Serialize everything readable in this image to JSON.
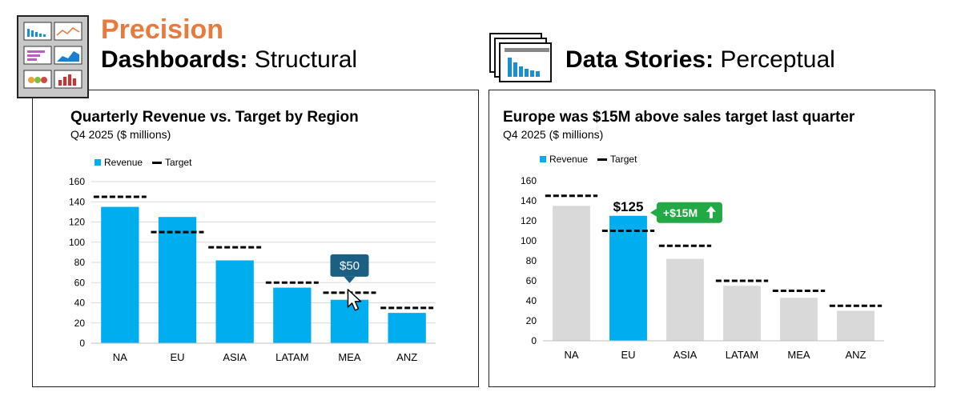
{
  "left_header": {
    "accent": "Precision",
    "title_bold": "Dashboards:",
    "title_rest": " Structural"
  },
  "right_header": {
    "title_bold": "Data Stories:",
    "title_rest": " Perceptual"
  },
  "icons": {
    "left": "dashboard-icon",
    "right": "data-stories-icon",
    "cursor": "cursor-arrow-icon",
    "up_arrow": "up-arrow-icon"
  },
  "colors": {
    "accent": "#e87a3e",
    "revenue": "#00aeef",
    "muted": "#d9d9d9",
    "target": "#000000",
    "tooltip": "#1b5f84",
    "callout": "#22a845",
    "grid": "#d9d9d9"
  },
  "chart_data": [
    {
      "type": "bar",
      "title": "Quarterly Revenue vs. Target by Region",
      "subtitle": "Q4 2025 ($ millions)",
      "categories": [
        "NA",
        "EU",
        "ASIA",
        "LATAM",
        "MEA",
        "ANZ"
      ],
      "series": [
        {
          "name": "Revenue",
          "values": [
            135,
            125,
            82,
            55,
            43,
            30
          ]
        },
        {
          "name": "Target",
          "values": [
            145,
            110,
            95,
            60,
            50,
            35
          ]
        }
      ],
      "ylim": [
        0,
        160
      ],
      "yticks": [
        0,
        20,
        40,
        60,
        80,
        100,
        120,
        140,
        160
      ],
      "grid": true,
      "legend": "top-left",
      "tooltip": {
        "category": "MEA",
        "label": "$50"
      }
    },
    {
      "type": "bar",
      "title": "Europe was $15M above sales target last quarter",
      "subtitle": "Q4 2025 ($ millions)",
      "categories": [
        "NA",
        "EU",
        "ASIA",
        "LATAM",
        "MEA",
        "ANZ"
      ],
      "series": [
        {
          "name": "Revenue",
          "values": [
            135,
            125,
            82,
            55,
            43,
            30
          ]
        },
        {
          "name": "Target",
          "values": [
            145,
            110,
            95,
            60,
            50,
            35
          ]
        }
      ],
      "ylim": [
        0,
        160
      ],
      "yticks": [
        0,
        20,
        40,
        60,
        80,
        100,
        120,
        140,
        160
      ],
      "grid": false,
      "legend": "top-left",
      "highlight": "EU",
      "value_label": "$125",
      "callout": "+$15M"
    }
  ]
}
